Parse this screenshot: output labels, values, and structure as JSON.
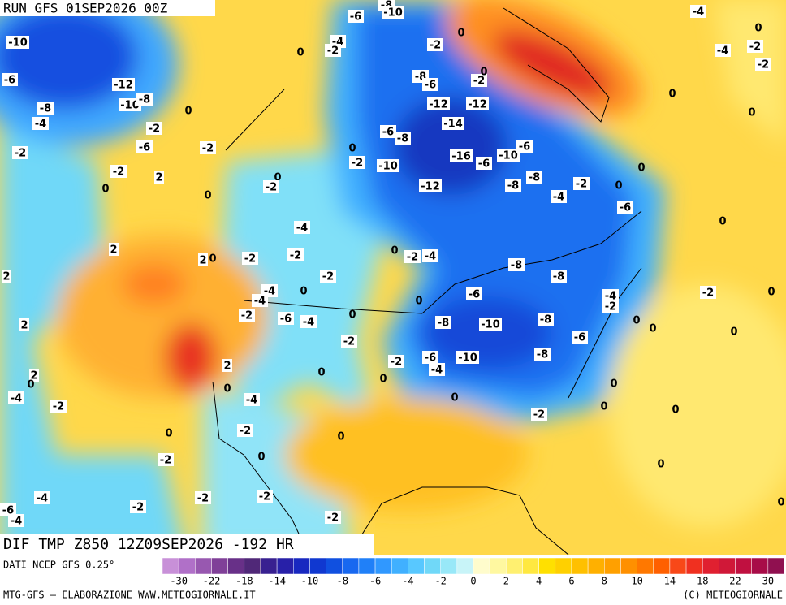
{
  "header": {
    "run": "RUN GFS 01SEP2026 00Z",
    "field": "DIF TMP Z850 12Z09SEP2026 -192 HR"
  },
  "footer": {
    "source": "DATI NCEP GFS 0.25°",
    "credit": "MTG-GFS — ELABORAZIONE WWW.METEOGIORNALE.IT",
    "copyright": "(C) METEOGIORNALE"
  },
  "legend": {
    "ticks": [
      -30,
      -22,
      -18,
      -14,
      -10,
      -8,
      -6,
      -4,
      -2,
      0,
      2,
      4,
      6,
      8,
      10,
      14,
      18,
      22,
      30
    ],
    "colors": [
      "#c890d8",
      "#b070c8",
      "#9858b0",
      "#804098",
      "#683088",
      "#502878",
      "#382090",
      "#2820a8",
      "#1828c0",
      "#1038d0",
      "#1050e0",
      "#1868f0",
      "#2080f8",
      "#3098ff",
      "#40b0ff",
      "#58c8ff",
      "#70d8f8",
      "#98e8f8",
      "#c8f4f8",
      "#fffccc",
      "#fff8a0",
      "#fff070",
      "#ffe840",
      "#ffe000",
      "#ffd000",
      "#ffc000",
      "#ffb000",
      "#ffa000",
      "#ff9000",
      "#ff7800",
      "#ff6000",
      "#f84818",
      "#f03020",
      "#e02030",
      "#d01838",
      "#c01040",
      "#a80c48",
      "#901050"
    ]
  },
  "contour_labels": [
    -10,
    -6,
    -12,
    -10,
    -8,
    -8,
    -4,
    -2,
    0,
    -6,
    -2,
    -2,
    -2,
    2,
    0,
    0,
    0,
    -2,
    -4,
    2,
    2,
    0,
    -2,
    -2,
    -2,
    -4,
    -4,
    0,
    -2,
    -6,
    -4,
    0,
    -2,
    2,
    2,
    0,
    0,
    -4,
    2,
    0,
    -4,
    -2,
    0,
    -2,
    0,
    -2,
    0,
    -4,
    -2,
    -2,
    -2,
    -6,
    -4,
    -2,
    -6,
    -8,
    -10,
    -4,
    -2,
    0,
    -2,
    -8,
    -6,
    -12,
    -12,
    -14,
    -6,
    -8,
    0,
    -2,
    -10,
    -16,
    -6,
    -10,
    -6,
    -12,
    -8,
    -8,
    -2,
    -4,
    0,
    -6,
    0,
    0,
    -2,
    0,
    -4,
    0,
    -2,
    -4,
    -2,
    0,
    0,
    0,
    0,
    -2,
    -4,
    -8,
    -8,
    -6,
    0,
    -4,
    -2,
    -2,
    0,
    0,
    0,
    0,
    -8,
    -10,
    -8,
    -6,
    -6,
    -10,
    -4,
    -2,
    -8,
    0,
    0,
    0,
    -2,
    0,
    0,
    0,
    0,
    2
  ]
}
